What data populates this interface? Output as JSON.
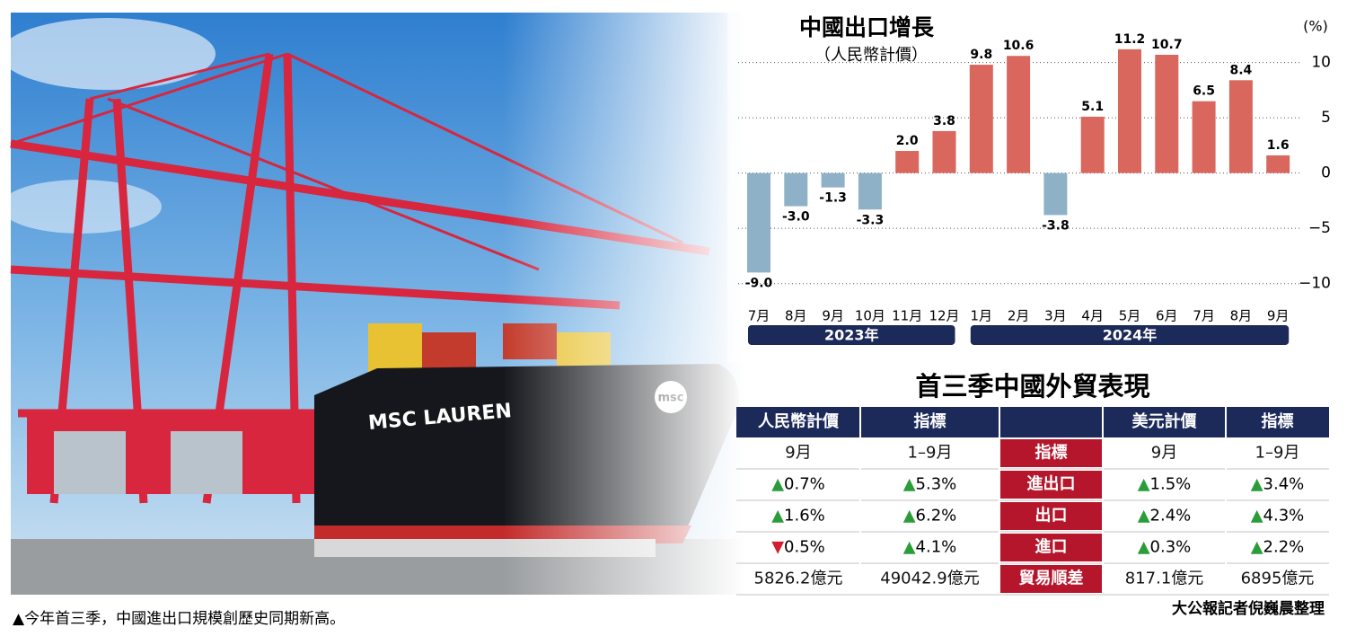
{
  "chart_data": {
    "type": "bar",
    "title": "中國出口增長",
    "subtitle": "（人民幣計價）",
    "y_unit": "(%)",
    "categories": [
      "7月",
      "8月",
      "9月",
      "10月",
      "11月",
      "12月",
      "1月",
      "2月",
      "3月",
      "4月",
      "5月",
      "6月",
      "7月",
      "8月",
      "9月"
    ],
    "values": [
      -9.0,
      -3.0,
      -1.3,
      -3.3,
      2.0,
      3.8,
      9.8,
      10.6,
      -3.8,
      5.1,
      11.2,
      10.7,
      6.5,
      8.4,
      1.6
    ],
    "value_labels": [
      "-9.0",
      "-3.0",
      "-1.3",
      "-3.3",
      "2.0",
      "3.8",
      "9.8",
      "10.6",
      "-3.8",
      "5.1",
      "11.2",
      "10.7",
      "6.5",
      "8.4",
      "1.6"
    ],
    "positive_color": "#d9675e",
    "negative_color": "#8fb1c8",
    "x_groups": [
      "2023年",
      "2024年"
    ],
    "ylim": [
      -11,
      12
    ],
    "yticks": [
      10,
      5,
      0,
      {
        "value": -5,
        "label": "−5"
      },
      {
        "value": -10,
        "label": "−10"
      }
    ],
    "grid": true
  },
  "table": {
    "title": "首三季中國外貿表現",
    "header": [
      "人民幣計價",
      "指標",
      "美元計價",
      "指標"
    ],
    "rows": [
      [
        "9月",
        "1–9月",
        "指標",
        "9月",
        "1–9月"
      ],
      [
        {
          "sign": "▲",
          "color": "#2a9d3a",
          "text": "0.7%"
        },
        {
          "sign": "▲",
          "color": "#2a9d3a",
          "text": "5.3%"
        },
        "進出口",
        {
          "sign": "▲",
          "color": "#2a9d3a",
          "text": "1.5%"
        },
        {
          "sign": "▲",
          "color": "#2a9d3a",
          "text": "3.4%"
        }
      ],
      [
        {
          "sign": "▲",
          "color": "#2a9d3a",
          "text": "1.6%"
        },
        {
          "sign": "▲",
          "color": "#2a9d3a",
          "text": "6.2%"
        },
        "出口",
        {
          "sign": "▲",
          "color": "#2a9d3a",
          "text": "2.4%"
        },
        {
          "sign": "▲",
          "color": "#2a9d3a",
          "text": "4.3%"
        }
      ],
      [
        {
          "sign": "▼",
          "color": "#d0202e",
          "text": "0.5%"
        },
        {
          "sign": "▲",
          "color": "#2a9d3a",
          "text": "4.1%"
        },
        "進口",
        {
          "sign": "▲",
          "color": "#2a9d3a",
          "text": "0.3%"
        },
        {
          "sign": "▲",
          "color": "#2a9d3a",
          "text": "2.2%"
        }
      ],
      [
        "5826.2億元",
        "49042.9億元",
        "貿易順差",
        "817.1億元",
        "6895億元"
      ]
    ]
  },
  "photo": {
    "ship_name": "MSC LAUREN",
    "ship_logo": "msc"
  },
  "caption": "▲今年首三季，中國進出口規模創歷史同期新高。",
  "credit": "大公報記者倪巍晨整理"
}
